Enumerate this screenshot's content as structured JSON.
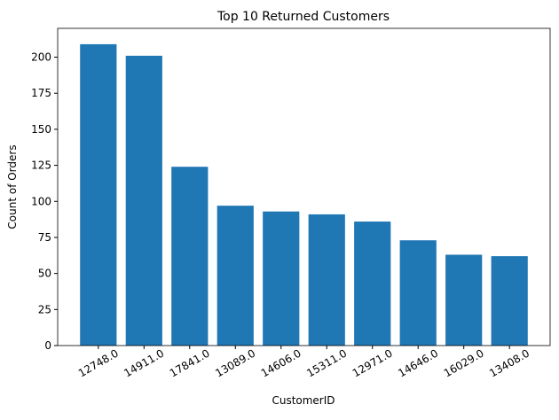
{
  "chart_data": {
    "type": "bar",
    "title": "Top 10 Returned Customers",
    "x_label": "CustomerID",
    "y_label": "Count of Orders",
    "categories": [
      "12748.0",
      "14911.0",
      "17841.0",
      "13089.0",
      "14606.0",
      "15311.0",
      "12971.0",
      "14646.0",
      "16029.0",
      "13408.0"
    ],
    "values": [
      209,
      201,
      124,
      97,
      93,
      91,
      86,
      73,
      63,
      62
    ],
    "color": "#1f77b4",
    "ylim": [
      0,
      220
    ],
    "yticks": [
      0,
      25,
      50,
      75,
      100,
      125,
      150,
      175,
      200
    ],
    "grid": false
  }
}
